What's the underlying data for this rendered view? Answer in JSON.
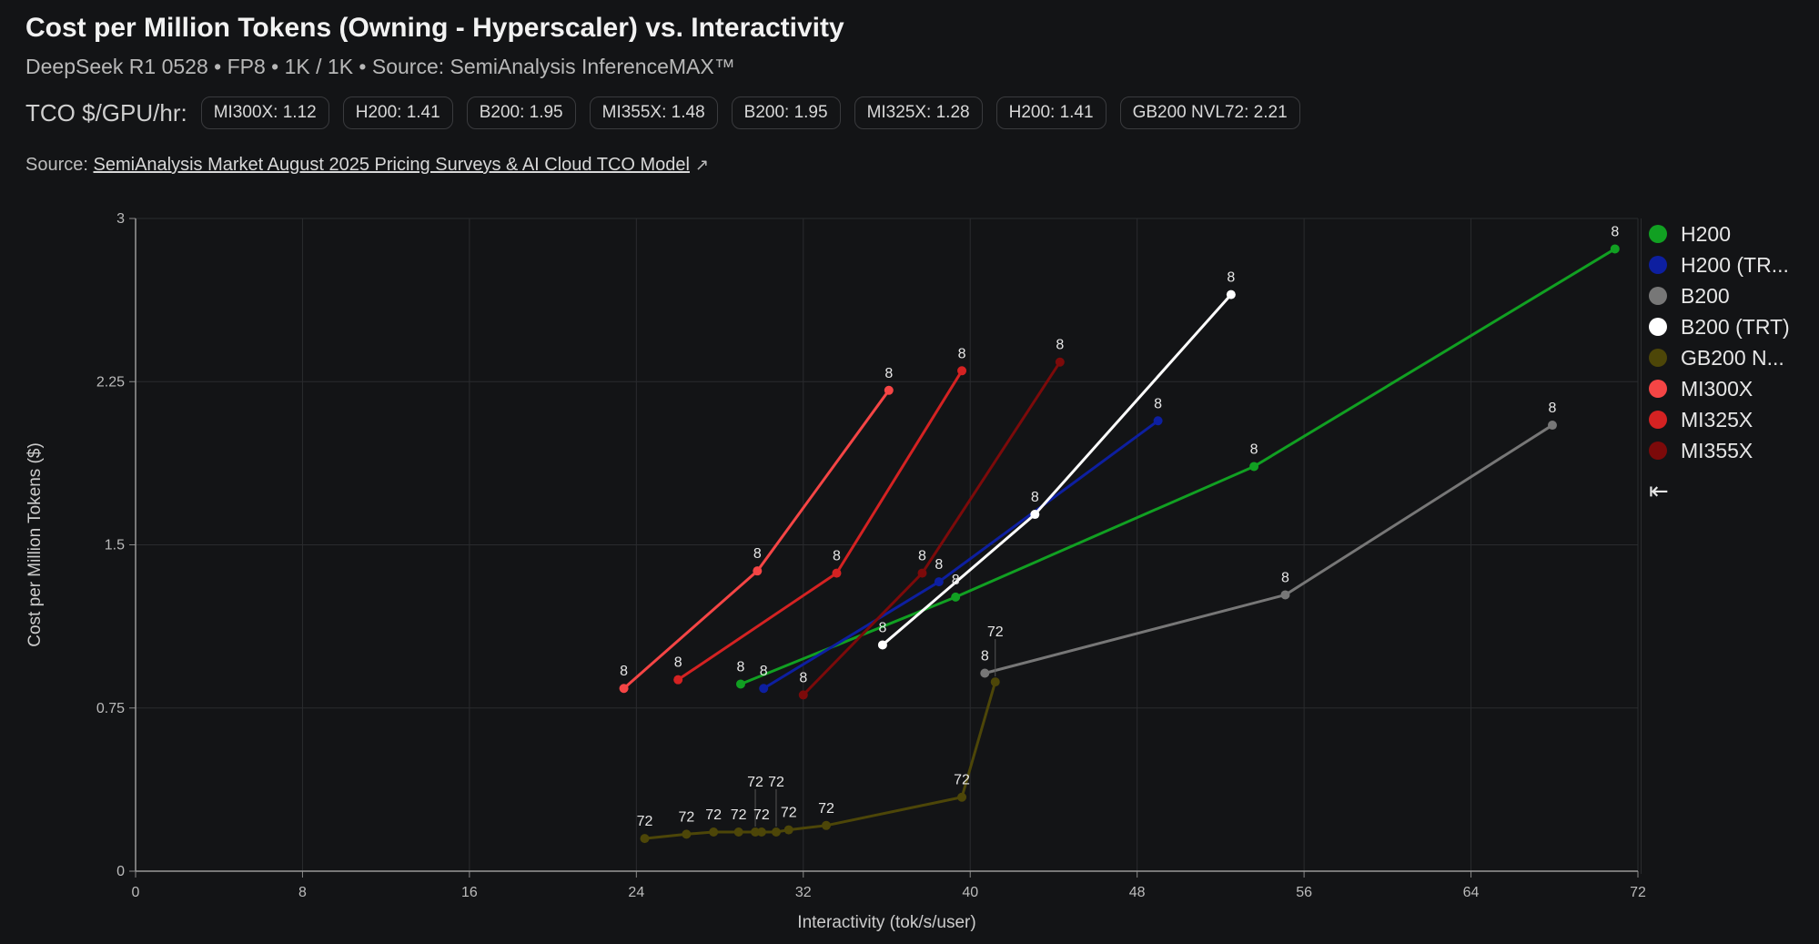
{
  "header": {
    "title": "Cost per Million Tokens (Owning - Hyperscaler) vs. Interactivity",
    "subtitle": "DeepSeek R1 0528 • FP8 • 1K / 1K • Source: SemiAnalysis InferenceMAX™",
    "tco_label": "TCO $/GPU/hr:",
    "tco_pills": [
      "MI300X: 1.12",
      "H200: 1.41",
      "B200: 1.95",
      "MI355X: 1.48",
      "B200: 1.95",
      "MI325X: 1.28",
      "H200: 1.41",
      "GB200 NVL72: 2.21"
    ],
    "source_prefix": "Source:",
    "source_link": "SemiAnalysis Market August 2025 Pricing Surveys & AI Cloud TCO Model",
    "source_icon": "external-link-icon"
  },
  "legend": {
    "collapse_icon": "collapse-left-icon",
    "collapse_glyph": "⇤"
  },
  "chart_data": {
    "type": "line",
    "title": "Cost per Million Tokens (Owning - Hyperscaler) vs. Interactivity",
    "xlabel": "Interactivity (tok/s/user)",
    "ylabel": "Cost per Million Tokens ($)",
    "xlim": [
      0,
      72
    ],
    "ylim": [
      0,
      3
    ],
    "xticks": [
      0,
      8,
      16,
      24,
      32,
      40,
      48,
      56,
      64,
      72
    ],
    "yticks": [
      0,
      0.75,
      1.5,
      2.25,
      3
    ],
    "ytick_labels": [
      "0",
      "0.75",
      "1.5",
      "2.25",
      "3"
    ],
    "grid": true,
    "legend_position": "right",
    "series": [
      {
        "name": "H200",
        "legend": "H200",
        "color": "#11a022",
        "labels": [
          "8",
          "8",
          "8",
          "8"
        ],
        "points": [
          [
            29.0,
            0.86
          ],
          [
            39.3,
            1.26
          ],
          [
            53.6,
            1.86
          ],
          [
            70.9,
            2.86
          ]
        ]
      },
      {
        "name": "H200 (TRT)",
        "legend": "H200 (TR...",
        "color": "#0d1fa0",
        "labels": [
          "8",
          "8",
          "8"
        ],
        "points": [
          [
            30.1,
            0.84
          ],
          [
            38.5,
            1.33
          ],
          [
            49.0,
            2.07
          ]
        ]
      },
      {
        "name": "B200",
        "legend": "B200",
        "color": "#777777",
        "labels": [
          "8",
          "8",
          "8"
        ],
        "points": [
          [
            40.7,
            0.91
          ],
          [
            55.1,
            1.27
          ],
          [
            67.9,
            2.05
          ]
        ]
      },
      {
        "name": "B200 (TRT)",
        "legend": "B200 (TRT)",
        "color": "#ffffff",
        "labels": [
          "8",
          "8",
          "8"
        ],
        "points": [
          [
            35.8,
            1.04
          ],
          [
            43.1,
            1.64
          ],
          [
            52.5,
            2.65
          ]
        ]
      },
      {
        "name": "GB200 NVL72",
        "legend": "GB200 N...",
        "color": "#4d4608",
        "labels": [
          "72",
          "72",
          "72",
          "72",
          "72",
          "72",
          "72",
          "72",
          "72",
          "72",
          "72"
        ],
        "points": [
          [
            24.4,
            0.15
          ],
          [
            26.4,
            0.17
          ],
          [
            27.7,
            0.18
          ],
          [
            28.9,
            0.18
          ],
          [
            29.7,
            0.18
          ],
          [
            30.0,
            0.18
          ],
          [
            30.7,
            0.18
          ],
          [
            31.3,
            0.19
          ],
          [
            33.1,
            0.21
          ],
          [
            39.6,
            0.34
          ],
          [
            41.2,
            0.87
          ]
        ]
      },
      {
        "name": "MI300X",
        "legend": "MI300X",
        "color": "#f54545",
        "labels": [
          "8",
          "8",
          "8"
        ],
        "points": [
          [
            23.4,
            0.84
          ],
          [
            29.8,
            1.38
          ],
          [
            36.1,
            2.21
          ]
        ]
      },
      {
        "name": "MI325X",
        "legend": "MI325X",
        "color": "#d42222",
        "labels": [
          "8",
          "8",
          "8"
        ],
        "points": [
          [
            26.0,
            0.88
          ],
          [
            33.6,
            1.37
          ],
          [
            39.6,
            2.3
          ]
        ]
      },
      {
        "name": "MI355X",
        "legend": "MI355X",
        "color": "#7c0a0a",
        "labels": [
          "8",
          "8",
          "8"
        ],
        "points": [
          [
            32.0,
            0.81
          ],
          [
            37.7,
            1.37
          ],
          [
            44.3,
            2.34
          ]
        ]
      }
    ]
  }
}
